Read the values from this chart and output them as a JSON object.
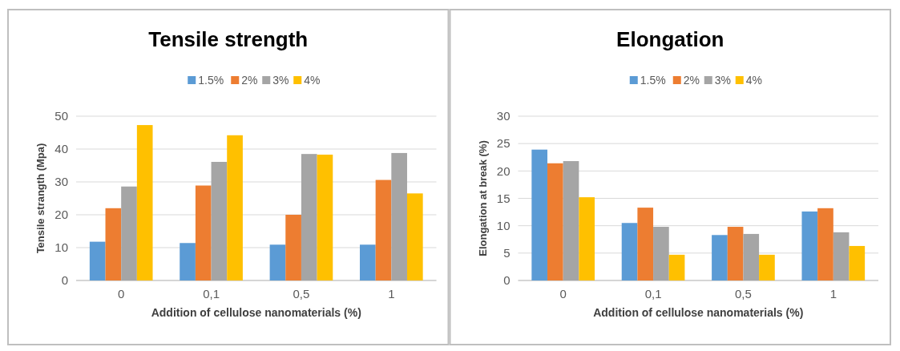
{
  "chart_data": [
    {
      "type": "bar",
      "title": "Tensile strength",
      "xlabel": "Addition of cellulose nanomaterials (%)",
      "ylabel": "Tensile strangth (Mpa)",
      "categories": [
        "0",
        "0,1",
        "0,5",
        "1"
      ],
      "ylim": [
        0,
        50
      ],
      "yticks": [
        0,
        10,
        20,
        30,
        40,
        50
      ],
      "grid": "y",
      "legend": "top",
      "series": [
        {
          "name": "1.5%",
          "color": "#5b9bd5",
          "values": [
            11.8,
            11.4,
            10.9,
            10.9
          ]
        },
        {
          "name": "2%",
          "color": "#ed7d31",
          "values": [
            22,
            28.9,
            20,
            30.6
          ]
        },
        {
          "name": "3%",
          "color": "#a5a5a5",
          "values": [
            28.6,
            36.1,
            38.5,
            38.8
          ]
        },
        {
          "name": "4%",
          "color": "#ffc000",
          "values": [
            47.3,
            44.2,
            38.3,
            26.5
          ]
        }
      ]
    },
    {
      "type": "bar",
      "title": "Elongation",
      "xlabel": "Addition of cellulose nanomaterials (%)",
      "ylabel": "Elongation at break (%)",
      "categories": [
        "0",
        "0,1",
        "0,5",
        "1"
      ],
      "ylim": [
        0,
        30
      ],
      "yticks": [
        0,
        5,
        10,
        15,
        20,
        25,
        30
      ],
      "grid": "y",
      "legend": "top",
      "series": [
        {
          "name": "1.5%",
          "color": "#5b9bd5",
          "values": [
            23.9,
            10.5,
            8.3,
            12.6
          ]
        },
        {
          "name": "2%",
          "color": "#ed7d31",
          "values": [
            21.4,
            13.3,
            9.8,
            13.2
          ]
        },
        {
          "name": "3%",
          "color": "#a5a5a5",
          "values": [
            21.8,
            9.8,
            8.5,
            8.8
          ]
        },
        {
          "name": "4%",
          "color": "#ffc000",
          "values": [
            15.2,
            4.7,
            4.7,
            6.3
          ]
        }
      ]
    }
  ]
}
